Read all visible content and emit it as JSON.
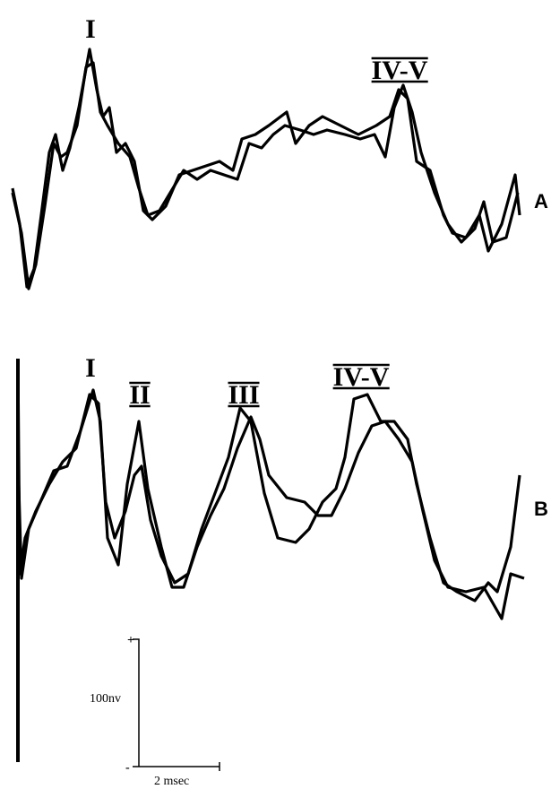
{
  "panel_a": {
    "peaks": [
      "I",
      "IV-V"
    ],
    "label": "A"
  },
  "panel_b": {
    "peaks": [
      "I",
      "II",
      "III",
      "IV-V"
    ],
    "label": "B"
  },
  "scale_bar": {
    "plus": "+",
    "minus": "-",
    "amplitude": "100nv",
    "time": "2 msec"
  }
}
